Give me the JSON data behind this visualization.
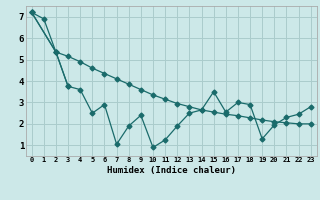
{
  "xlabel": "Humidex (Indice chaleur)",
  "bg_color": "#cce8e8",
  "grid_color": "#aacccc",
  "line_color": "#1a6b6b",
  "xlim": [
    -0.5,
    23.5
  ],
  "ylim": [
    0.5,
    7.5
  ],
  "xtick_vals": [
    0,
    1,
    2,
    3,
    4,
    5,
    6,
    7,
    8,
    9,
    10,
    11,
    12,
    13,
    14,
    15,
    16,
    17,
    18,
    19,
    20,
    21,
    22,
    23
  ],
  "ytick_vals": [
    1,
    2,
    3,
    4,
    5,
    6,
    7
  ],
  "line1_x": [
    0,
    1,
    2,
    3,
    4,
    5,
    6,
    7,
    8,
    9,
    10,
    11,
    12,
    13,
    14,
    15,
    16,
    17,
    18,
    19,
    20,
    21,
    22,
    23
  ],
  "line1_y": [
    7.2,
    6.9,
    5.35,
    5.15,
    4.9,
    4.6,
    4.35,
    4.1,
    3.85,
    3.6,
    3.35,
    3.15,
    2.95,
    2.8,
    2.65,
    2.55,
    2.45,
    2.38,
    2.28,
    2.18,
    2.1,
    2.05,
    2.0,
    2.0
  ],
  "line2_x": [
    0,
    2,
    3,
    4,
    5,
    6,
    7,
    8,
    9,
    10,
    11,
    12,
    13,
    14,
    15,
    16,
    17,
    18,
    19,
    20,
    21,
    22,
    23
  ],
  "line2_y": [
    7.2,
    5.35,
    3.75,
    3.6,
    2.5,
    2.9,
    1.05,
    1.9,
    2.4,
    0.9,
    1.25,
    1.9,
    2.5,
    2.65,
    3.5,
    2.55,
    3.0,
    2.9,
    1.3,
    1.95,
    2.3,
    2.45,
    2.8
  ],
  "line3_x": [
    0,
    2,
    3
  ],
  "line3_y": [
    7.2,
    5.35,
    3.75
  ]
}
